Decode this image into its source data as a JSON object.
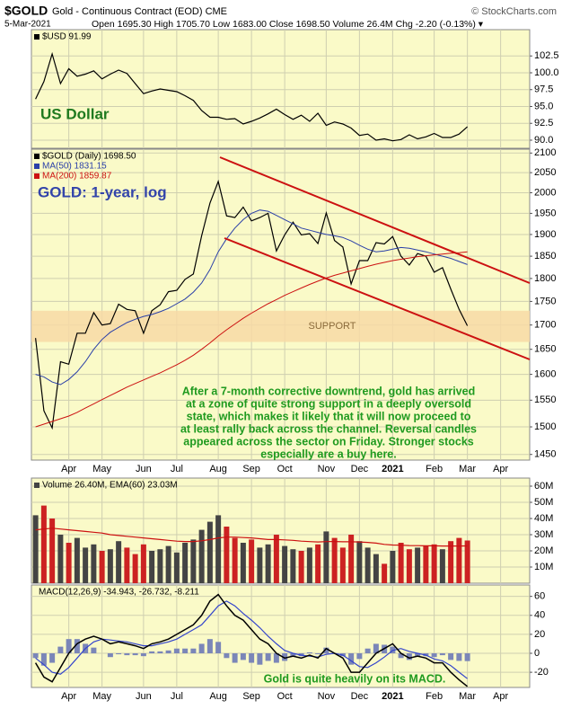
{
  "header": {
    "symbol": "$GOLD",
    "name": "Gold - Continuous Contract (EOD) CME",
    "copyright": "© StockCharts.com",
    "date": "5-Mar-2021",
    "quote": "Open 1695.30 High 1705.70 Low 1683.00 Close 1698.50 Volume 26.4M Chg -2.20 (-0.13%) ▾"
  },
  "chart_data": [
    {
      "type": "line",
      "annotation": "US Dollar",
      "annotation_color": "#1f7a1f",
      "grid": true,
      "ylim": [
        88.8,
        106.4
      ],
      "yticks": [
        {
          "value": 90,
          "label": "90.0"
        },
        92.5,
        {
          "value": 95,
          "label": "95.0"
        },
        97.5,
        {
          "value": 100,
          "label": "100.0"
        },
        102.5
      ],
      "series": [
        {
          "name": "$USD 91.99",
          "color": "#000000",
          "values": [
            96.1,
            98.7,
            102.8,
            98.4,
            100.6,
            99.5,
            99.8,
            100.3,
            99.1,
            99.8,
            100.4,
            99.9,
            98.4,
            96.9,
            97.3,
            97.6,
            97.4,
            97.2,
            96.6,
            95.9,
            94.4,
            93.4,
            93.4,
            93.1,
            93.2,
            92.4,
            92.8,
            93.3,
            93.9,
            94.6,
            93.8,
            93.1,
            93.7,
            92.8,
            94.0,
            92.2,
            92.7,
            92.4,
            91.8,
            90.7,
            90.9,
            90.0,
            90.2,
            89.9,
            90.1,
            90.8,
            90.2,
            90.5,
            91.0,
            90.4,
            90.4,
            90.9,
            91.99,
            null,
            null,
            null,
            null,
            null,
            null,
            null
          ]
        }
      ]
    },
    {
      "type": "line",
      "log_scale": true,
      "title": "GOLD: 1-year, log",
      "title_color": "#3344aa",
      "grid": true,
      "categories": [
        null,
        null,
        null,
        null,
        "Apr",
        null,
        null,
        null,
        "May",
        null,
        null,
        null,
        null,
        "Jun",
        null,
        null,
        null,
        "Jul",
        null,
        null,
        null,
        null,
        "Aug",
        null,
        null,
        null,
        "Sep",
        null,
        null,
        null,
        "Oct",
        null,
        null,
        null,
        null,
        "Nov",
        null,
        null,
        null,
        "Dec",
        null,
        null,
        null,
        "2021",
        null,
        null,
        null,
        null,
        "Feb",
        null,
        null,
        null,
        "Mar",
        null,
        null,
        null,
        "Apr",
        null,
        null,
        null
      ],
      "ylim": [
        1440,
        2110
      ],
      "yticks": [
        1450,
        1500,
        1550,
        1600,
        1650,
        1700,
        1750,
        1800,
        1850,
        1900,
        1950,
        2000,
        2050,
        2100
      ],
      "support_zone": {
        "label": "SUPPORT",
        "range": [
          1665,
          1730
        ],
        "color": "#f7d9a6"
      },
      "annotation": [
        "After a 7-month corrective downtrend, gold has arrived",
        "at a zone of quite strong support in a deeply oversold",
        "state, which makes it likely that it will now proceed to",
        "at least rally back across the channel. Reversal candles",
        "appeared across the sector on Friday. Stronger stocks",
        "especially are a buy here."
      ],
      "annotation_color": "#1f9a1f",
      "series": [
        {
          "name": "$GOLD (Daily) 1698.50",
          "color": "#000000",
          "values": [
            1673,
            1530,
            1498,
            1625,
            1620,
            1683,
            1683,
            1726,
            1700,
            1703,
            1744,
            1733,
            1730,
            1683,
            1730,
            1743,
            1771,
            1774,
            1798,
            1810,
            1897,
            1975,
            2028,
            1944,
            1940,
            1965,
            1932,
            1940,
            1950,
            1862,
            1899,
            1929,
            1899,
            1902,
            1879,
            1951,
            1886,
            1871,
            1788,
            1840,
            1840,
            1881,
            1878,
            1895,
            1850,
            1830,
            1856,
            1850,
            1814,
            1824,
            1777,
            1733,
            1698.5,
            null,
            null,
            null,
            null,
            null,
            null,
            null
          ]
        },
        {
          "name": "MA(50) 1831.15",
          "color": "#2a3fa8",
          "values": [
            1600,
            1595,
            1585,
            1580,
            1590,
            1605,
            1625,
            1650,
            1670,
            1685,
            1695,
            1705,
            1712,
            1718,
            1722,
            1728,
            1735,
            1745,
            1755,
            1770,
            1790,
            1820,
            1860,
            1890,
            1915,
            1935,
            1950,
            1958,
            1955,
            1945,
            1935,
            1925,
            1915,
            1910,
            1905,
            1900,
            1897,
            1893,
            1885,
            1875,
            1866,
            1860,
            1862,
            1866,
            1870,
            1868,
            1864,
            1860,
            1855,
            1850,
            1845,
            1838,
            1831.15,
            null,
            null,
            null,
            null,
            null,
            null,
            null
          ]
        },
        {
          "name": "MA(200) 1859.87",
          "color": "#cc1111",
          "values": [
            1500,
            1505,
            1510,
            1515,
            1520,
            1527,
            1535,
            1543,
            1551,
            1559,
            1567,
            1575,
            1582,
            1589,
            1596,
            1603,
            1611,
            1619,
            1628,
            1638,
            1650,
            1663,
            1677,
            1690,
            1702,
            1714,
            1725,
            1735,
            1745,
            1754,
            1763,
            1771,
            1779,
            1787,
            1794,
            1801,
            1807,
            1812,
            1817,
            1822,
            1827,
            1832,
            1836,
            1840,
            1843,
            1846,
            1849,
            1851,
            1853,
            1855,
            1857,
            1858,
            1859.87,
            null,
            null,
            null,
            null,
            null,
            null,
            null
          ]
        }
      ]
    },
    {
      "type": "bar",
      "legend": "Volume 26.40M, EMA(60) 23.03M",
      "grid": true,
      "up_color": "#444444",
      "down_color": "#cc2222",
      "ylim": [
        0,
        65000000
      ],
      "yticks": [
        {
          "value": 10000000,
          "label": "10M"
        },
        {
          "value": 20000000,
          "label": "20M"
        },
        {
          "value": 30000000,
          "label": "30M"
        },
        {
          "value": 40000000,
          "label": "40M"
        },
        {
          "value": 50000000,
          "label": "50M"
        },
        {
          "value": 60000000,
          "label": "60M"
        }
      ],
      "values": [
        42000000,
        48000000,
        40000000,
        30000000,
        25000000,
        28000000,
        22000000,
        24000000,
        20000000,
        21000000,
        26000000,
        22000000,
        18000000,
        24000000,
        20000000,
        21000000,
        23000000,
        19000000,
        25000000,
        27000000,
        33000000,
        38000000,
        42000000,
        35000000,
        28000000,
        25000000,
        27000000,
        22000000,
        24000000,
        30000000,
        23000000,
        21000000,
        20000000,
        22000000,
        24000000,
        32000000,
        28000000,
        22000000,
        30000000,
        26000000,
        22000000,
        18000000,
        12000000,
        20000000,
        25000000,
        21000000,
        22000000,
        23000000,
        24000000,
        21000000,
        26000000,
        28000000,
        26400000,
        null,
        null,
        null,
        null,
        null,
        null,
        null
      ],
      "ema": {
        "color": "#cc1111",
        "values": [
          33000000,
          33500000,
          34000000,
          33500000,
          33000000,
          32500000,
          32000000,
          31500000,
          31000000,
          30000000,
          29500000,
          29000000,
          28500000,
          28000000,
          27500000,
          27000000,
          26500000,
          26000000,
          25800000,
          25800000,
          26200000,
          27000000,
          28000000,
          28500000,
          28500000,
          28200000,
          28000000,
          27500000,
          27000000,
          27000000,
          26800000,
          26500000,
          26000000,
          25700000,
          25500000,
          25700000,
          25800000,
          25600000,
          25600000,
          25500000,
          25200000,
          24800000,
          24000000,
          23600000,
          23500000,
          23300000,
          23200000,
          23100000,
          23100000,
          23000000,
          23000000,
          23000000,
          23030000,
          null,
          null,
          null,
          null,
          null,
          null,
          null
        ]
      }
    },
    {
      "type": "macd",
      "legend": "MACD(12,26,9) -34.943, -26.732, -8.211",
      "grid": true,
      "annotation": "Gold is quite heavily on its MACD.",
      "annotation_color": "#1f9a1f",
      "categories": [
        null,
        null,
        null,
        null,
        "Apr",
        null,
        null,
        null,
        "May",
        null,
        null,
        null,
        null,
        "Jun",
        null,
        null,
        null,
        "Jul",
        null,
        null,
        null,
        null,
        "Aug",
        null,
        null,
        null,
        "Sep",
        null,
        null,
        null,
        "Oct",
        null,
        null,
        null,
        null,
        "Nov",
        null,
        null,
        null,
        "Dec",
        null,
        null,
        null,
        "2021",
        null,
        null,
        null,
        null,
        "Feb",
        null,
        null,
        null,
        "Mar",
        null,
        null,
        null,
        "Apr",
        null,
        null,
        null
      ],
      "ylim": [
        -36,
        72
      ],
      "yticks": [
        -20,
        0,
        20,
        40,
        60
      ],
      "macd": {
        "color": "#000000",
        "values": [
          -10,
          -25,
          -30,
          -15,
          0,
          10,
          15,
          18,
          15,
          10,
          12,
          10,
          8,
          5,
          10,
          12,
          15,
          20,
          25,
          30,
          40,
          55,
          62,
          50,
          40,
          35,
          25,
          15,
          10,
          0,
          -5,
          -3,
          -5,
          -2,
          -5,
          5,
          0,
          -5,
          -20,
          -20,
          -10,
          0,
          5,
          10,
          0,
          -5,
          -3,
          -5,
          -10,
          -10,
          -20,
          -28,
          -34.943,
          null,
          null,
          null,
          null,
          null,
          null,
          null
        ]
      },
      "signal": {
        "color": "#3344cc",
        "values": [
          -5,
          -12,
          -20,
          -22,
          -15,
          -5,
          5,
          12,
          15,
          14,
          13,
          12,
          10,
          8,
          8,
          10,
          12,
          15,
          20,
          25,
          30,
          40,
          50,
          55,
          50,
          42,
          35,
          27,
          18,
          10,
          3,
          0,
          -2,
          -3,
          -4,
          -1,
          0,
          -2,
          -8,
          -14,
          -15,
          -10,
          -4,
          3,
          5,
          2,
          0,
          -2,
          -6,
          -8,
          -13,
          -20,
          -26.732,
          null,
          null,
          null,
          null,
          null,
          null,
          null
        ]
      },
      "histogram": {
        "color": "#7b86b8",
        "values": [
          -5,
          -13,
          -10,
          7,
          15,
          15,
          10,
          6,
          0,
          -4,
          -1,
          -2,
          -2,
          -3,
          2,
          2,
          3,
          5,
          5,
          5,
          10,
          15,
          12,
          -5,
          -10,
          -7,
          -10,
          -12,
          -8,
          -10,
          -8,
          -3,
          -3,
          1,
          -1,
          6,
          0,
          -3,
          -12,
          -6,
          5,
          10,
          9,
          7,
          -5,
          -7,
          -3,
          -3,
          -4,
          -2,
          -7,
          -8,
          -8.211,
          null,
          null,
          null,
          null,
          null,
          null,
          null
        ]
      }
    }
  ]
}
